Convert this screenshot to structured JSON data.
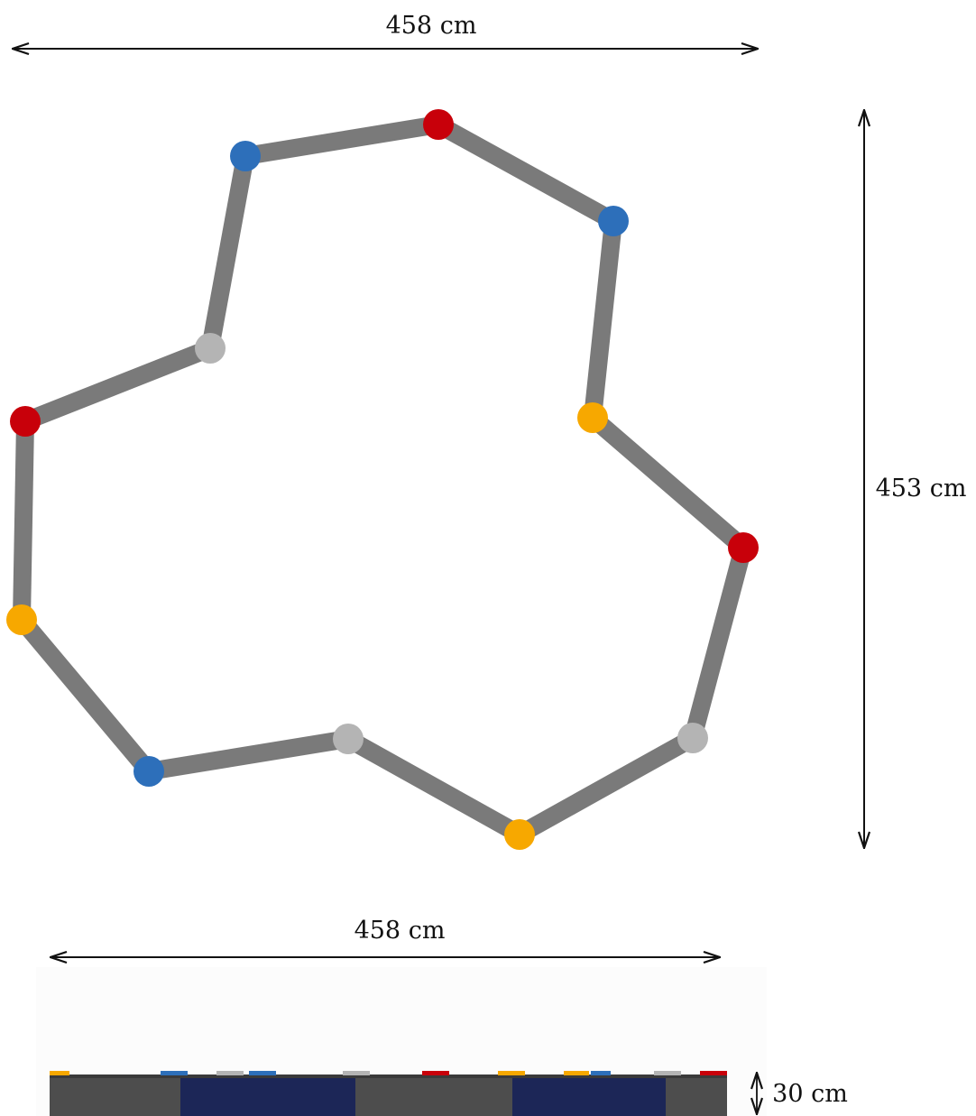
{
  "top_view": {
    "width_label": "458 cm",
    "height_label": "453 cm",
    "beam_color": "#7a7a7a",
    "joints": [
      {
        "id": "j1",
        "color": "red"
      },
      {
        "id": "j2",
        "color": "blue"
      },
      {
        "id": "j3",
        "color": "yellow"
      },
      {
        "id": "j4",
        "color": "red"
      },
      {
        "id": "j5",
        "color": "gray"
      },
      {
        "id": "j6",
        "color": "yellow"
      },
      {
        "id": "j7",
        "color": "gray"
      },
      {
        "id": "j8",
        "color": "blue"
      },
      {
        "id": "j9",
        "color": "yellow"
      },
      {
        "id": "j10",
        "color": "red"
      },
      {
        "id": "j11",
        "color": "gray"
      },
      {
        "id": "j12",
        "color": "blue"
      }
    ]
  },
  "side_view": {
    "width_label": "458 cm",
    "height_label": "30 cm"
  },
  "colors": {
    "red": "#c8000a",
    "blue": "#2d6fba",
    "yellow": "#f7a800",
    "gray": "#b4b4b4",
    "beam": "#7a7a7a",
    "navy": "#1c2657",
    "dark": "#4d4d4d"
  }
}
